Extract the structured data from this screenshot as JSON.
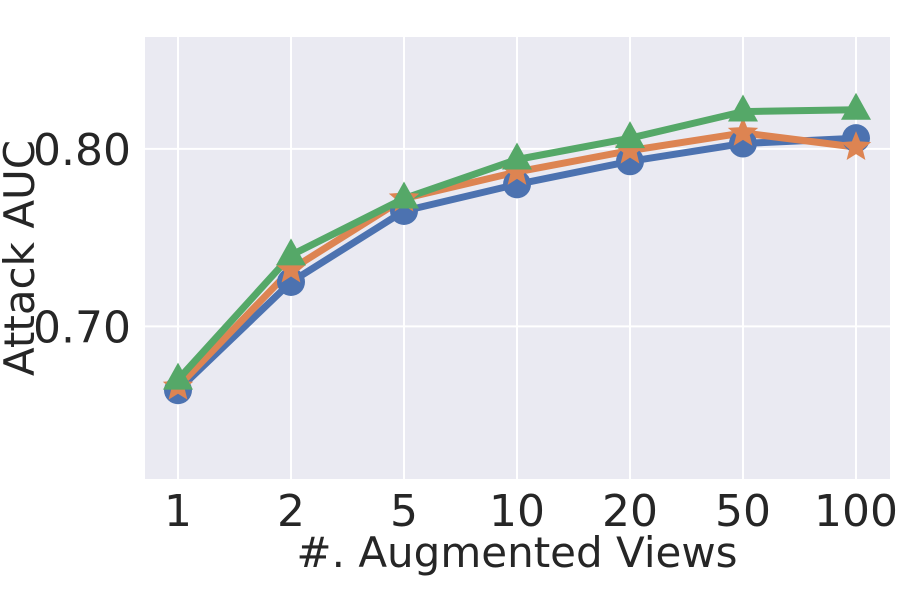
{
  "chart_data": {
    "type": "line",
    "x_categories": [
      "1",
      "2",
      "5",
      "10",
      "20",
      "50",
      "100"
    ],
    "xlabel": "#. Augmented Views",
    "ylabel": "Attack AUC",
    "ylim": [
      0.614,
      0.863
    ],
    "yticks": [
      0.7,
      0.8
    ],
    "ytick_labels": [
      "0.70",
      "0.80"
    ],
    "grid": true,
    "legend": "none",
    "background_color": "#EAEAF2",
    "series": [
      {
        "color": "#4C72B0",
        "marker": "circle",
        "values": [
          0.664,
          0.725,
          0.765,
          0.78,
          0.793,
          0.803,
          0.806
        ]
      },
      {
        "color": "#DD8452",
        "marker": "star",
        "values": [
          0.666,
          0.732,
          0.772,
          0.787,
          0.799,
          0.809,
          0.801
        ]
      },
      {
        "color": "#55A868",
        "marker": "triangle",
        "values": [
          0.67,
          0.74,
          0.772,
          0.794,
          0.806,
          0.821,
          0.822
        ]
      }
    ]
  }
}
